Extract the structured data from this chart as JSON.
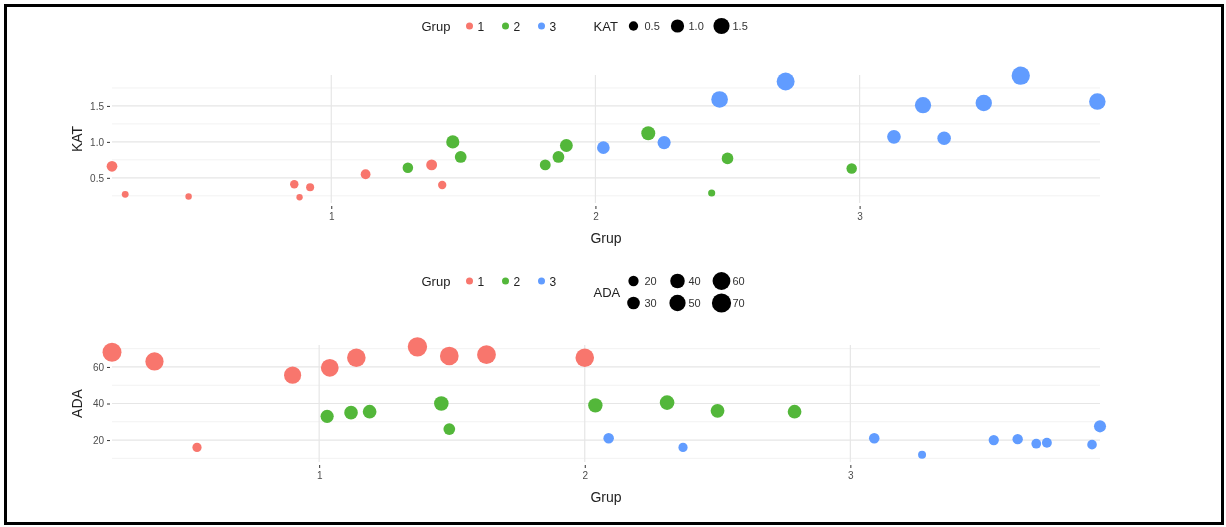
{
  "chart_data": [
    {
      "type": "bubble",
      "xlabel": "Grup",
      "ylabel": "KAT",
      "legend_title": "Grup",
      "legend": "top",
      "grid": true,
      "annotations": [
        "KAT"
      ],
      "xlim": [
        0.17,
        3.91
      ],
      "xticks": [
        1,
        2,
        3
      ],
      "ylim": [
        0.15,
        1.93
      ],
      "yticks": [
        {
          "value": 0.5,
          "label": "0.5"
        },
        {
          "value": 1,
          "label": "1.0"
        },
        {
          "value": 1.5,
          "label": "1.5"
        }
      ],
      "size_legend": [
        {
          "value": 0.5,
          "label": "0.5"
        },
        {
          "value": 1,
          "label": "1.0"
        },
        {
          "value": 1.5,
          "label": "1.5"
        }
      ],
      "series": [
        {
          "name": "1",
          "color": "#f8766d",
          "x": [
            0.17,
            0.22,
            0.46,
            0.86,
            0.88,
            0.92,
            1.13,
            1.38,
            1.42
          ],
          "values": [
            0.66,
            0.27,
            0.24,
            0.41,
            0.23,
            0.37,
            0.55,
            0.68,
            0.4
          ],
          "sizes": [
            0.66,
            0.27,
            0.24,
            0.41,
            0.23,
            0.37,
            0.55,
            0.68,
            0.4
          ]
        },
        {
          "name": "2",
          "color": "#53b73a",
          "x": [
            1.29,
            1.46,
            1.49,
            1.81,
            1.86,
            1.89,
            2.2,
            2.44,
            2.5,
            2.97
          ],
          "values": [
            0.64,
            1.0,
            0.79,
            0.68,
            0.79,
            0.95,
            1.12,
            0.29,
            0.77,
            0.63
          ],
          "sizes": [
            0.64,
            1.0,
            0.79,
            0.68,
            0.79,
            0.95,
            1.12,
            0.29,
            0.77,
            0.63
          ]
        },
        {
          "name": "3",
          "color": "#619cff",
          "x": [
            2.03,
            2.26,
            2.47,
            2.72,
            3.13,
            3.24,
            3.32,
            3.47,
            3.61,
            3.9
          ],
          "values": [
            0.92,
            0.99,
            1.59,
            1.84,
            1.07,
            1.51,
            1.05,
            1.54,
            1.92,
            1.56
          ],
          "sizes": [
            0.92,
            0.99,
            1.59,
            1.84,
            1.07,
            1.51,
            1.05,
            1.54,
            1.92,
            1.56
          ]
        }
      ]
    },
    {
      "type": "bubble",
      "xlabel": "Grup",
      "ylabel": "ADA",
      "legend_title": "Grup",
      "legend": "top",
      "grid": true,
      "annotations": [
        "ADA"
      ],
      "xlim": [
        0.22,
        3.94
      ],
      "xticks": [
        1,
        2,
        3
      ],
      "ylim": [
        8,
        72
      ],
      "yticks": [
        20,
        40,
        60
      ],
      "size_legend": [
        20,
        30,
        40,
        50,
        60,
        70
      ],
      "series": [
        {
          "name": "1",
          "color": "#f8766d",
          "x": [
            0.22,
            0.38,
            0.54,
            0.9,
            1.04,
            1.14,
            1.37,
            1.49,
            1.63,
            2.0
          ],
          "values": [
            68,
            63,
            16,
            55.5,
            59.5,
            65,
            71,
            66,
            66.7,
            65
          ],
          "sizes": [
            68,
            63,
            16,
            55.5,
            59.5,
            65,
            71,
            66,
            66.7,
            65
          ]
        },
        {
          "name": "2",
          "color": "#53b73a",
          "x": [
            1.03,
            1.12,
            1.19,
            1.46,
            1.49,
            2.04,
            2.31,
            2.5,
            2.79
          ],
          "values": [
            33,
            35,
            35.5,
            40,
            26,
            39,
            40.5,
            36,
            35.5
          ],
          "sizes": [
            33,
            35,
            35.5,
            40,
            26,
            39,
            40.5,
            36,
            35.5
          ]
        },
        {
          "name": "3",
          "color": "#619cff",
          "x": [
            2.09,
            2.37,
            3.09,
            3.27,
            3.54,
            3.63,
            3.7,
            3.74,
            3.91,
            3.94
          ],
          "values": [
            21,
            16,
            21,
            12,
            20,
            20.5,
            18,
            18.5,
            17.5,
            27.5
          ],
          "sizes": [
            21,
            16,
            21,
            12,
            20,
            20.5,
            18,
            18.5,
            17.5,
            27.5
          ]
        }
      ]
    }
  ]
}
